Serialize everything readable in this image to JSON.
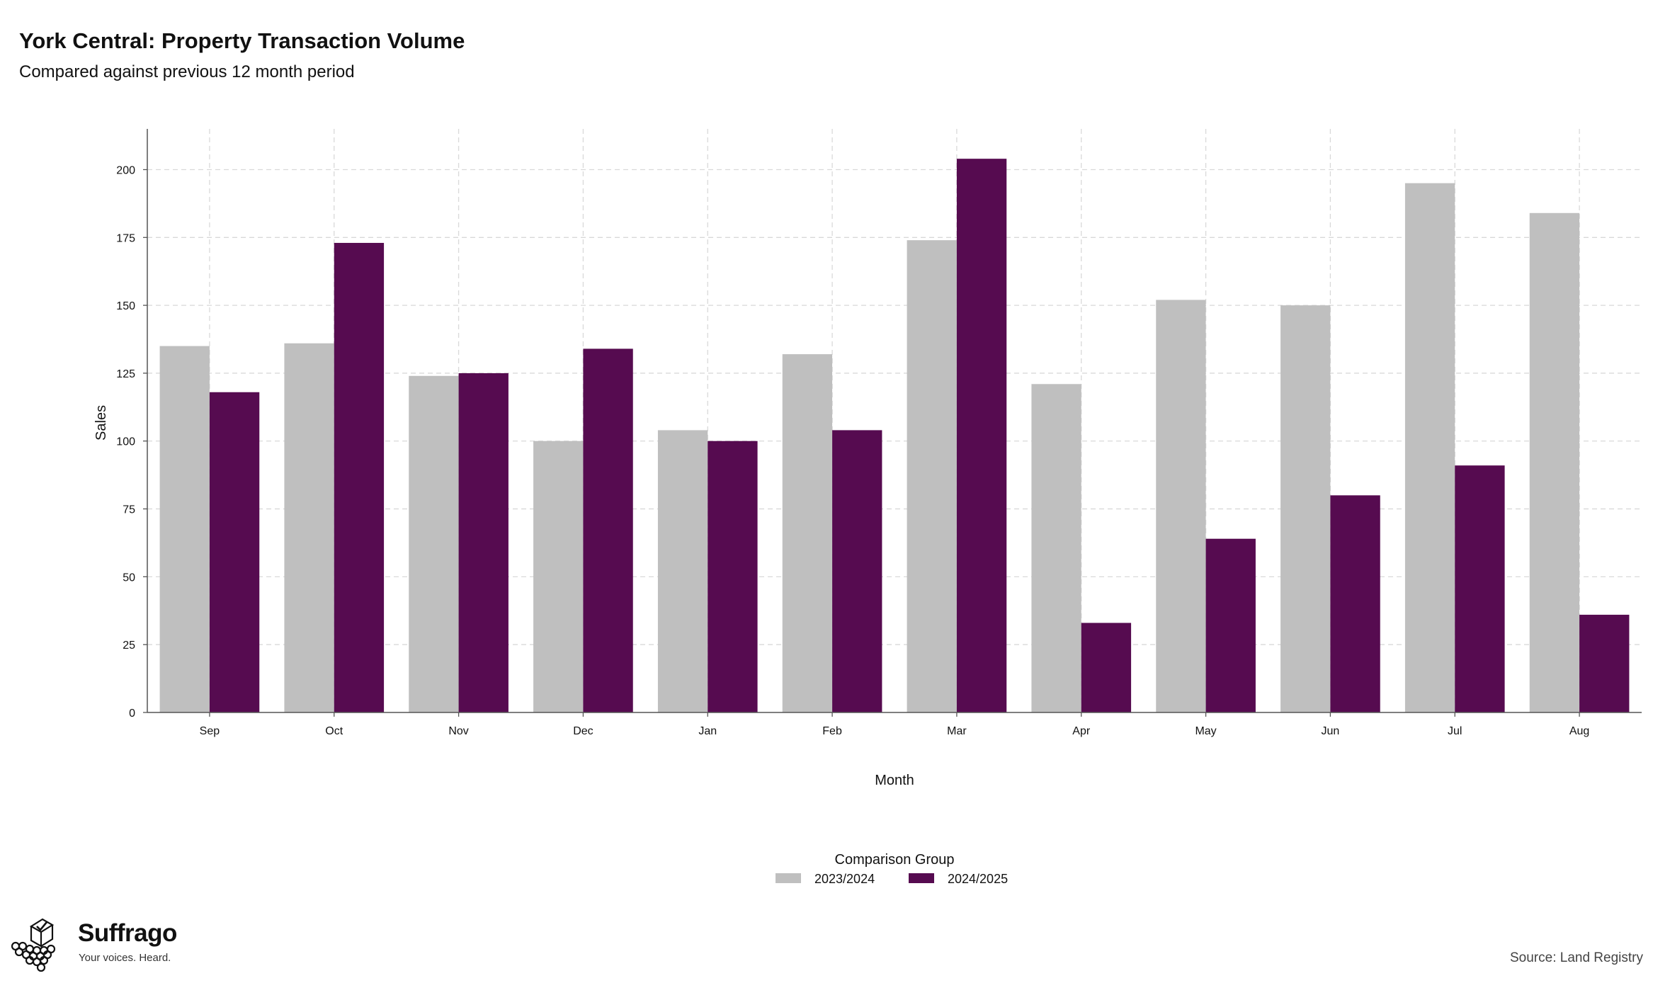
{
  "header": {
    "title": "York Central: Property Transaction Volume",
    "subtitle": "Compared against previous 12 month period"
  },
  "chart_data": {
    "type": "bar",
    "title": "York Central: Property Transaction Volume",
    "subtitle": "Compared against previous 12 month period",
    "xlabel": "Month",
    "ylabel": "Sales",
    "categories": [
      "Sep",
      "Oct",
      "Nov",
      "Dec",
      "Jan",
      "Feb",
      "Mar",
      "Apr",
      "May",
      "Jun",
      "Jul",
      "Aug"
    ],
    "series": [
      {
        "name": "2023/2024",
        "color": "#bfbfbf",
        "values": [
          135,
          136,
          124,
          100,
          104,
          132,
          174,
          121,
          152,
          150,
          195,
          184
        ]
      },
      {
        "name": "2024/2025",
        "color": "#560b50",
        "values": [
          118,
          173,
          125,
          134,
          100,
          104,
          204,
          33,
          64,
          80,
          91,
          36
        ]
      }
    ],
    "ylim": [
      0,
      215
    ],
    "yticks": [
      0,
      25,
      50,
      75,
      100,
      125,
      150,
      175,
      200
    ],
    "grid": true,
    "legend": {
      "title": "Comparison Group",
      "position": "bottom"
    }
  },
  "branding": {
    "name": "Suffrago",
    "tagline": "Your voices. Heard.",
    "icon": "ballot-box-icon"
  },
  "source": "Source: Land Registry"
}
